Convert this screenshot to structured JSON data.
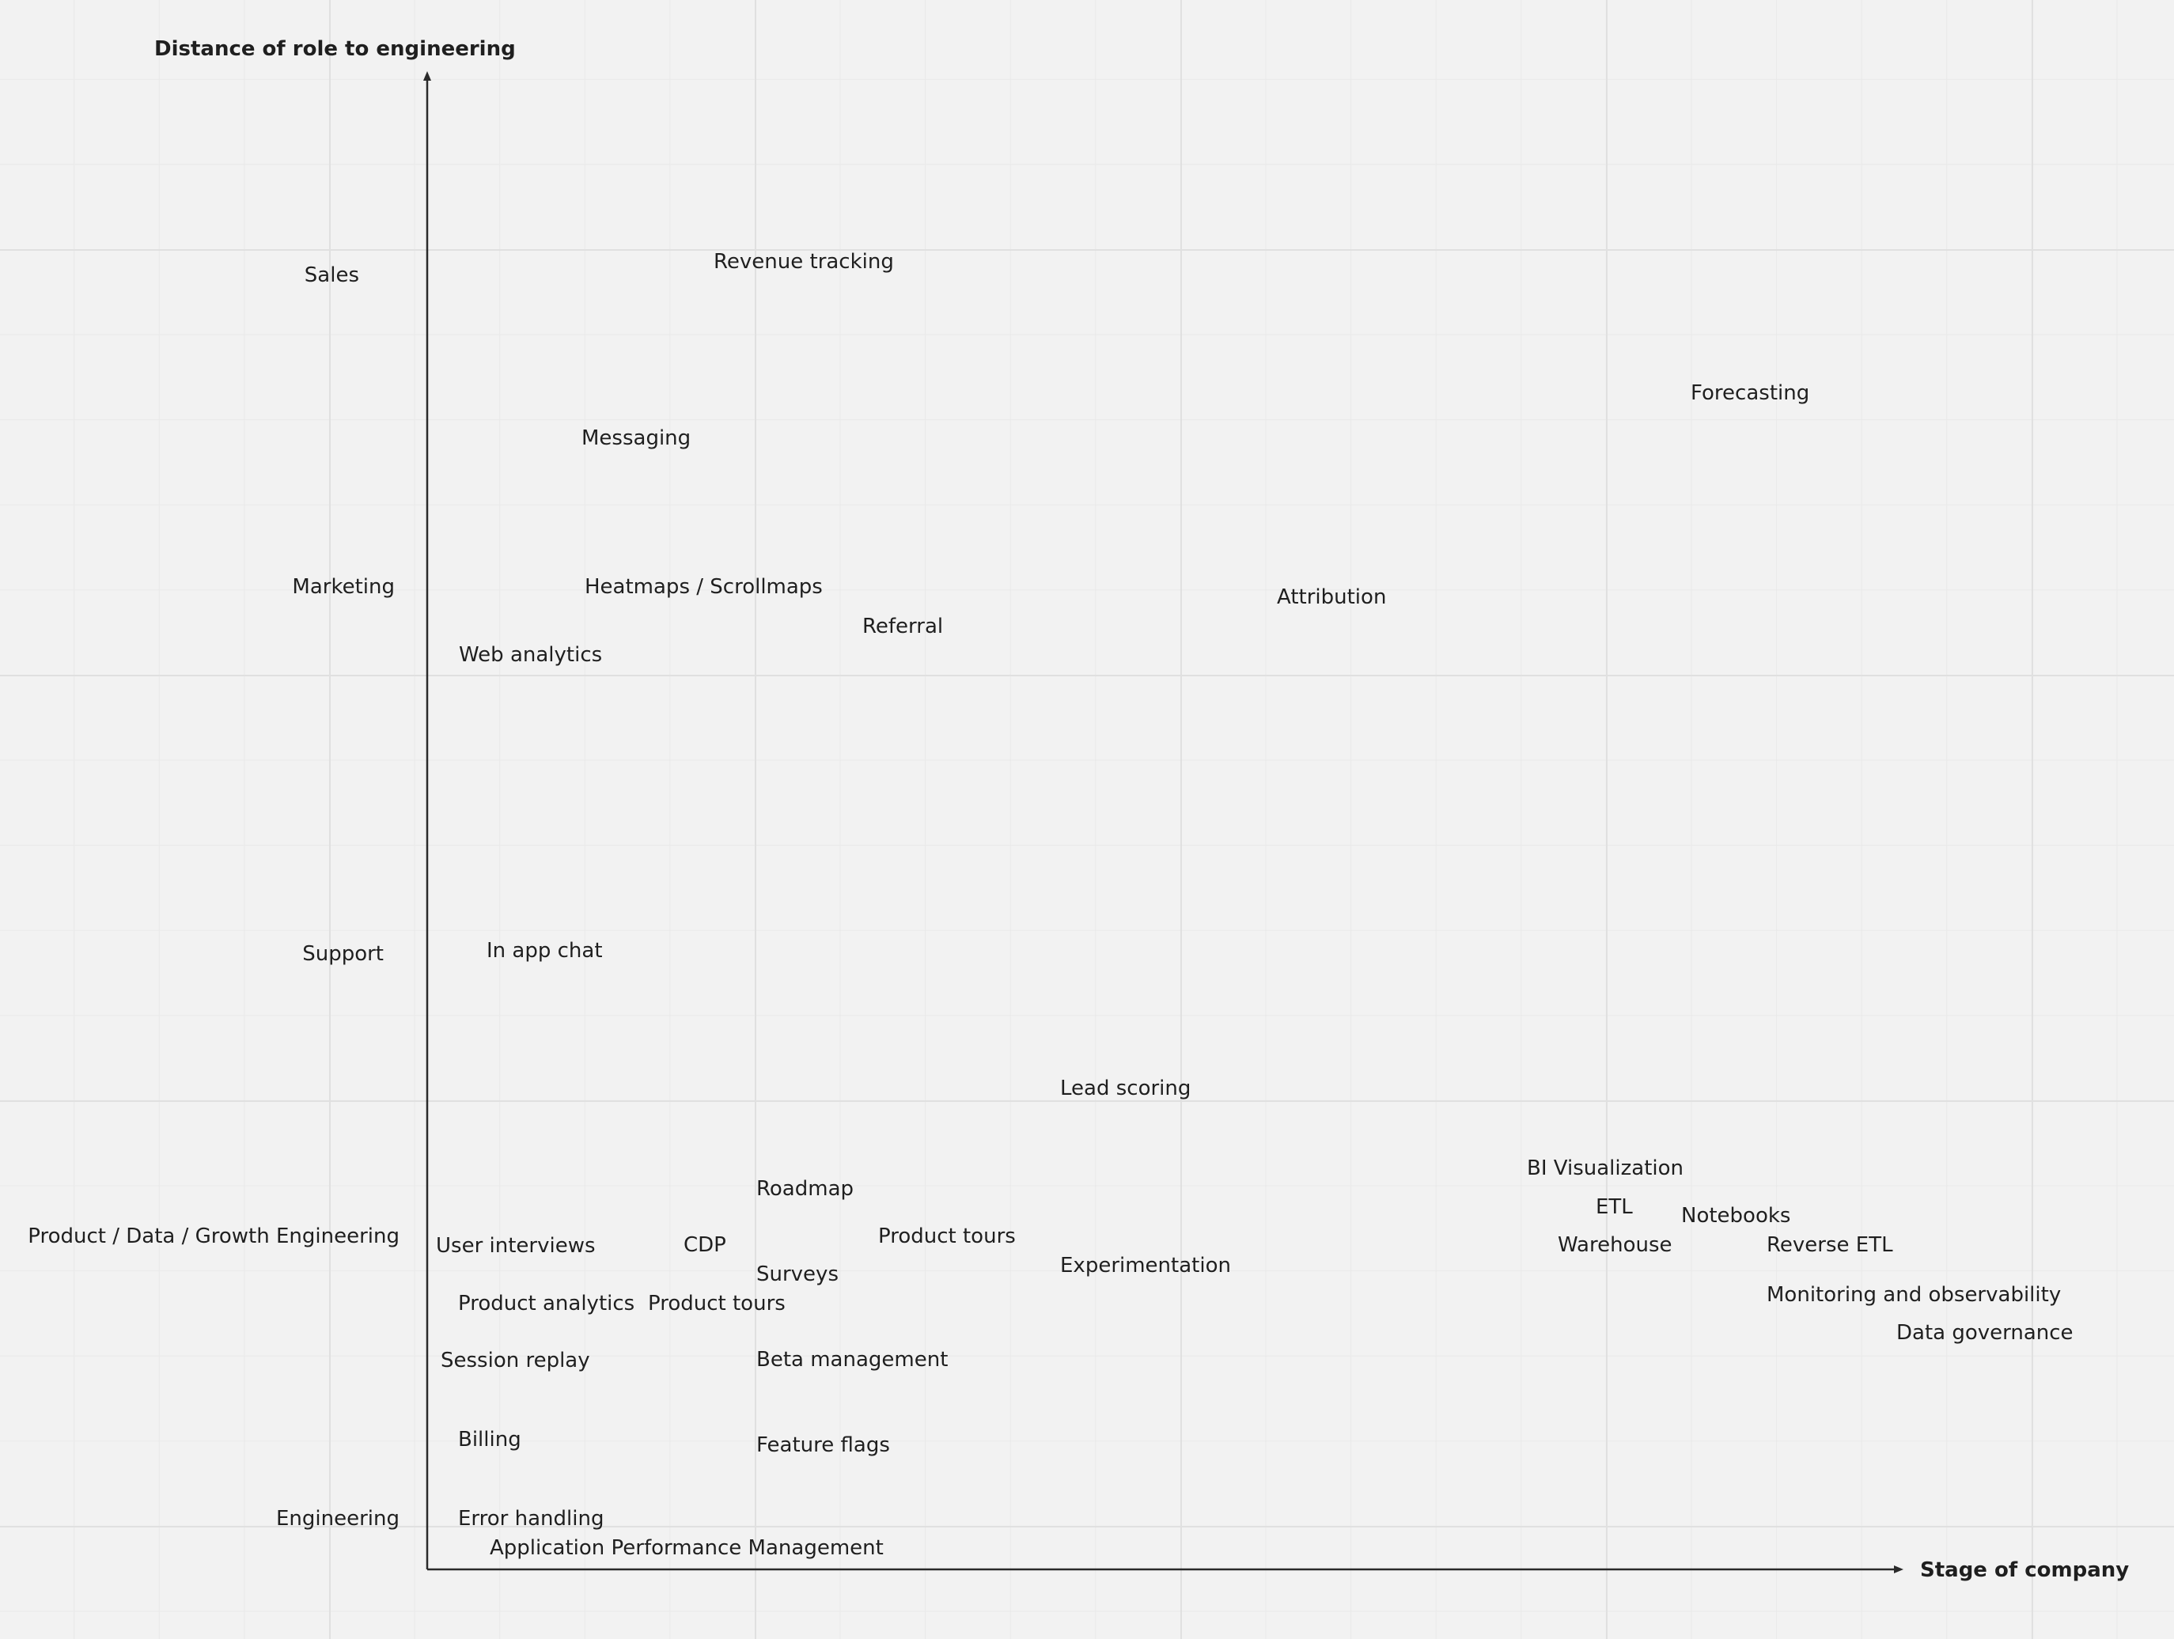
{
  "diagram": {
    "y_axis_title": "Distance of role to engineering",
    "x_axis_title": "Stage of company",
    "roles": {
      "sales": "Sales",
      "marketing": "Marketing",
      "support": "Support",
      "product": "Product / Data / Growth Engineering",
      "engineering": "Engineering"
    },
    "tools": {
      "revenue_tracking": "Revenue tracking",
      "forecasting": "Forecasting",
      "messaging": "Messaging",
      "heatmaps": "Heatmaps / Scrollmaps",
      "attribution": "Attribution",
      "referral": "Referral",
      "web_analytics": "Web analytics",
      "in_app_chat": "In app chat",
      "lead_scoring": "Lead scoring",
      "roadmap": "Roadmap",
      "bi_visualization": "BI Visualization",
      "etl": "ETL",
      "notebooks": "Notebooks",
      "user_interviews": "User interviews",
      "cdp": "CDP",
      "product_tours_1": "Product tours",
      "warehouse": "Warehouse",
      "reverse_etl": "Reverse ETL",
      "surveys": "Surveys",
      "experimentation": "Experimentation",
      "product_analytics": "Product analytics",
      "product_tours_2": "Product tours",
      "monitoring": "Monitoring and observability",
      "data_governance": "Data governance",
      "session_replay": "Session replay",
      "beta_management": "Beta management",
      "billing": "Billing",
      "feature_flags": "Feature flags",
      "error_handling": "Error handling",
      "apm": "Application Performance Management"
    },
    "colors": {
      "axis": "#2a2a2a",
      "text": "#1f1f1f",
      "background": "#f2f2f2"
    }
  }
}
